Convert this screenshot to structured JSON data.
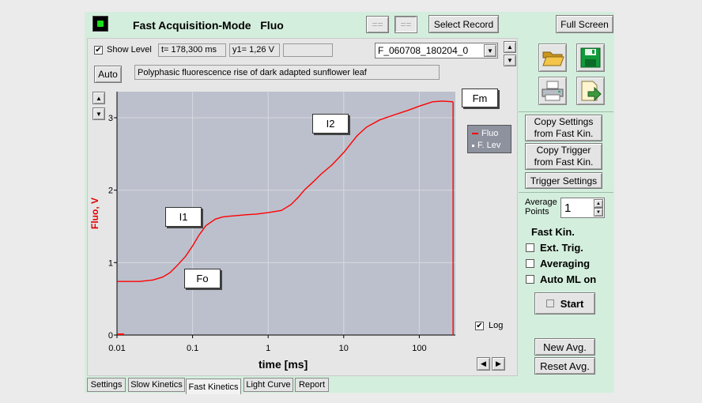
{
  "app": {
    "title": "Fast Acquisition-Mode   Fluo",
    "btn_eq1": "==",
    "btn_eq2": "==",
    "select_record": "Select Record",
    "full_screen": "Full Screen"
  },
  "toolbar": {
    "show_level_label": "Show Level",
    "show_level_checked": true,
    "t_readout": "t= 178,300 ms",
    "y1_readout": "y1= 1,26 V",
    "extra_readout": "",
    "record_value": "F_060708_180204_0",
    "auto_label": "Auto",
    "description": "Polyphasic fluorescence rise of dark adapted sunflower leaf"
  },
  "chart_data": {
    "type": "line",
    "xlabel": "time [ms]",
    "ylabel": "Fluo, V",
    "xscale": "log",
    "xlim": [
      0.01,
      300
    ],
    "ylim": [
      0,
      3.3
    ],
    "x_ticks": [
      "0.01",
      "0.1",
      "1",
      "10",
      "100"
    ],
    "y_ticks": [
      "0",
      "1",
      "2",
      "3"
    ],
    "grid": true,
    "legend": [
      "Fluo",
      "F. Lev"
    ],
    "legend_position": "top-right",
    "series": [
      {
        "name": "Fluo",
        "color": "#ff0000",
        "x": [
          0.01,
          0.015,
          0.02,
          0.03,
          0.04,
          0.05,
          0.06,
          0.08,
          0.1,
          0.12,
          0.15,
          0.2,
          0.25,
          0.3,
          0.4,
          0.5,
          0.7,
          1.0,
          1.5,
          2,
          2.5,
          3,
          4,
          5,
          7,
          10,
          15,
          20,
          30,
          50,
          70,
          100,
          150,
          200,
          280
        ],
        "y": [
          0.74,
          0.74,
          0.74,
          0.76,
          0.8,
          0.86,
          0.94,
          1.08,
          1.23,
          1.37,
          1.51,
          1.6,
          1.63,
          1.64,
          1.65,
          1.66,
          1.67,
          1.69,
          1.72,
          1.8,
          1.9,
          2.0,
          2.12,
          2.22,
          2.35,
          2.52,
          2.75,
          2.87,
          2.97,
          3.05,
          3.1,
          3.16,
          3.22,
          3.23,
          3.22
        ]
      }
    ],
    "annotations": [
      "Fm",
      "I2",
      "I1",
      "Fo"
    ],
    "log_label": "Log",
    "log_checked": true
  },
  "side": {
    "copy_settings": [
      "Copy Settings",
      "from Fast Kin."
    ],
    "copy_trigger": [
      "Copy Trigger",
      "from Fast Kin."
    ],
    "trigger_settings": "Trigger Settings",
    "average_points_label": [
      "Average",
      "Points"
    ],
    "average_points_value": "1",
    "fast_kin_label": "Fast Kin.",
    "ext_trig": "Ext. Trig.",
    "averaging": "Averaging",
    "auto_ml": "Auto ML on",
    "start": "Start",
    "new_avg": "New Avg.",
    "reset_avg": "Reset Avg."
  },
  "tabs": [
    "Settings",
    "Slow Kinetics",
    "Fast Kinetics",
    "Light Curve",
    "Report"
  ],
  "active_tab": "Fast Kinetics"
}
